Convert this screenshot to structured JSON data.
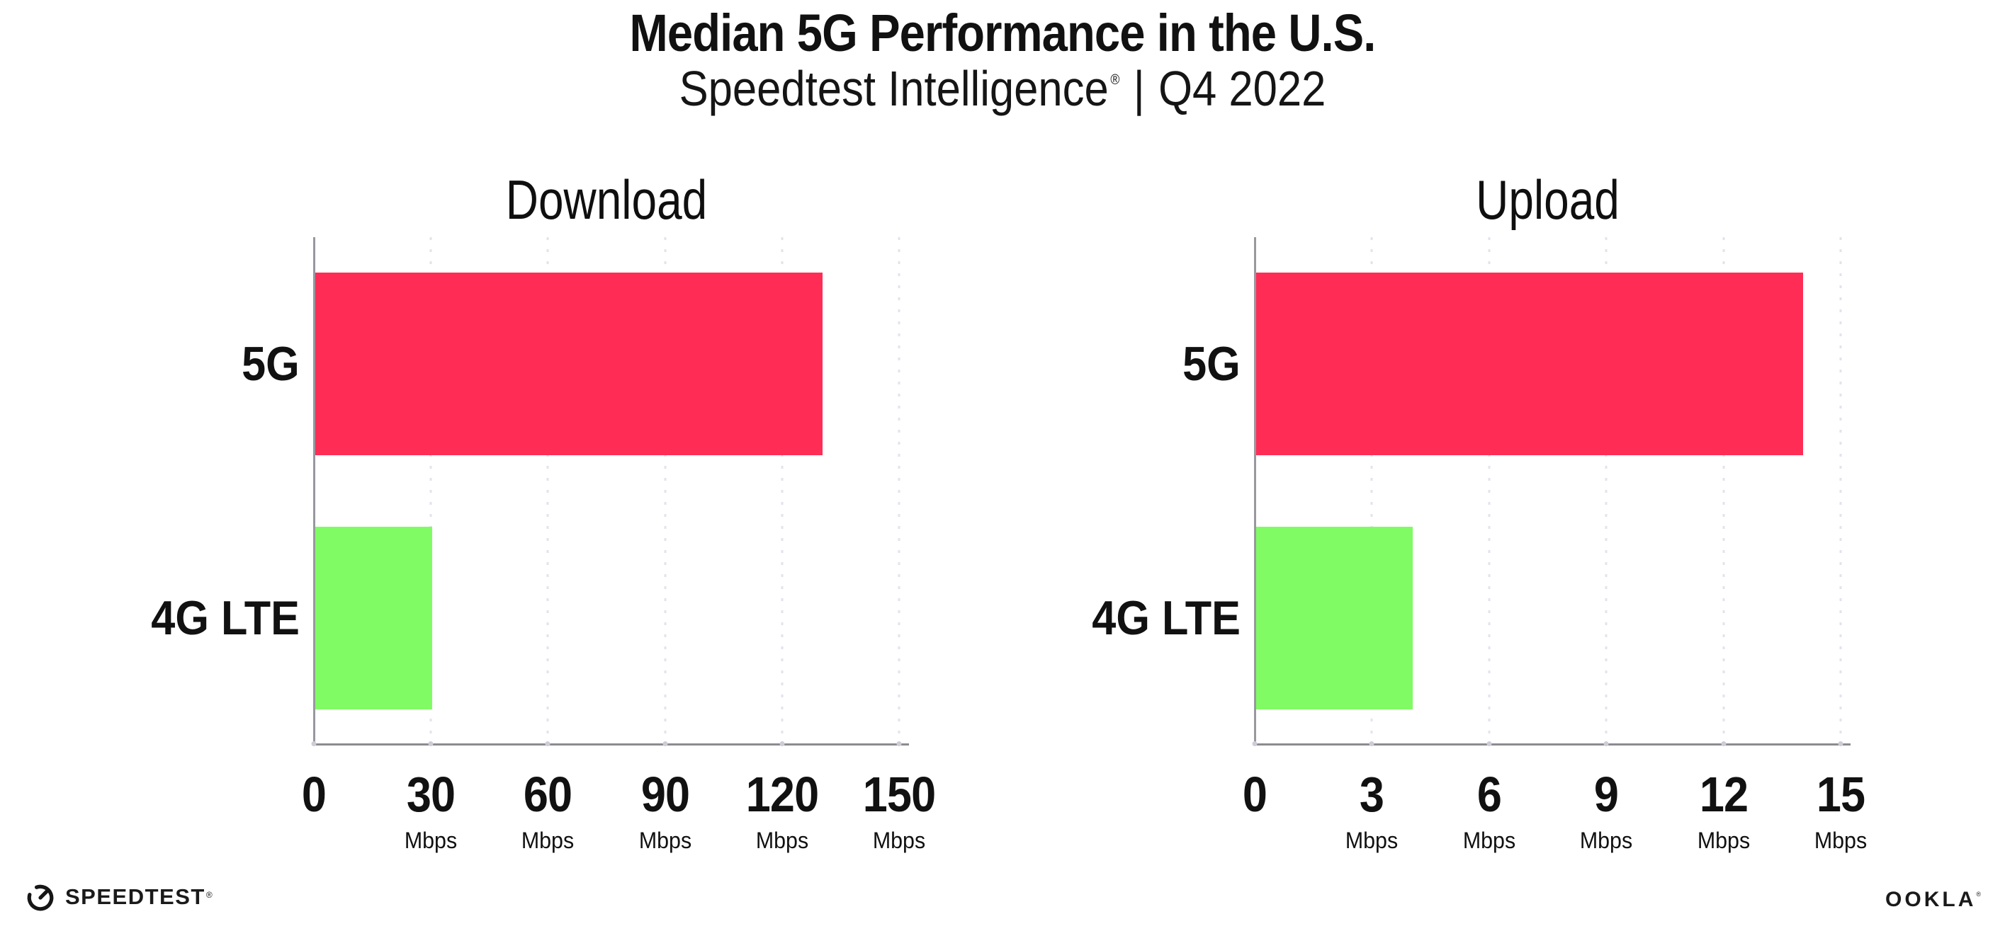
{
  "header": {
    "title": "Median 5G Performance in the U.S.",
    "subtitle_brand": "Speedtest Intelligence",
    "subtitle_reg": "®",
    "subtitle_separator": "|",
    "subtitle_period": "Q4 2022"
  },
  "chart_data": [
    {
      "type": "bar",
      "orientation": "horizontal",
      "title": "Download",
      "categories": [
        "5G",
        "4G LTE"
      ],
      "values": [
        130,
        30
      ],
      "unit": "Mbps",
      "xlim": [
        0,
        150
      ],
      "ticks": [
        0,
        30,
        60,
        90,
        120,
        150
      ],
      "grid": "dotted-vertical",
      "legend": "none",
      "bar_colors": [
        "#ff2d55",
        "#80fb64"
      ]
    },
    {
      "type": "bar",
      "orientation": "horizontal",
      "title": "Upload",
      "categories": [
        "5G",
        "4G LTE"
      ],
      "values": [
        14,
        4
      ],
      "unit": "Mbps",
      "xlim": [
        0,
        15
      ],
      "ticks": [
        0,
        3,
        6,
        9,
        12,
        15
      ],
      "grid": "dotted-vertical",
      "legend": "none",
      "bar_colors": [
        "#ff2d55",
        "#80fb64"
      ]
    }
  ],
  "colors": {
    "bar_5g": "#ff2d55",
    "bar_4g_lte": "#80fb64",
    "axis": "#98989f",
    "gridline": "#e2e3ed",
    "text": "#111111",
    "background": "#ffffff"
  },
  "footer": {
    "speedtest_label": "SPEEDTEST",
    "speedtest_reg": "®",
    "speedtest_icon": "gauge-icon",
    "ookla_label": "OOKLA",
    "ookla_reg": "®"
  }
}
